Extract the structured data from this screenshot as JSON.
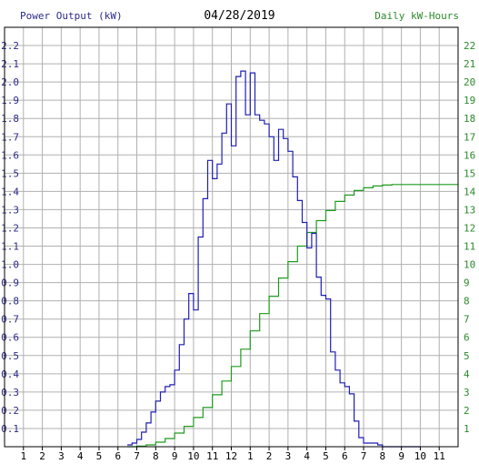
{
  "header": {
    "left_title": "Power Output (kW)",
    "date": "04/28/2019",
    "right_title": "Daily kW-Hours"
  },
  "colors": {
    "power_line": "#1f1fb4",
    "energy_line": "#1f9a1f",
    "grid": "#b0b0b0",
    "frame": "#000000",
    "left_axis_text": "#2b2b8c",
    "right_axis_text": "#2c8a2c"
  },
  "chart_data": {
    "type": "line",
    "title": "04/28/2019",
    "xlabel": "",
    "ylabel": "Power Output (kW)",
    "y2label": "Daily kW-Hours",
    "x_ticks": [
      "1",
      "2",
      "3",
      "4",
      "5",
      "6",
      "7",
      "8",
      "9",
      "10",
      "11",
      "12",
      "1",
      "2",
      "3",
      "4",
      "5",
      "6",
      "7",
      "8",
      "9",
      "10",
      "11"
    ],
    "ylim": [
      0,
      2.3
    ],
    "y_ticks": [
      "0.1",
      "0.2",
      "0.3",
      "0.4",
      "0.5",
      "0.6",
      "0.7",
      "0.8",
      "0.9",
      "1.0",
      "1.1",
      "1.2",
      "1.3",
      "1.4",
      "1.5",
      "1.6",
      "1.7",
      "1.8",
      "1.9",
      "2.0",
      "2.1",
      "2.2"
    ],
    "y2lim": [
      0,
      23
    ],
    "y2_ticks": [
      "1",
      "2",
      "3",
      "4",
      "5",
      "6",
      "7",
      "8",
      "9",
      "10",
      "11",
      "12",
      "13",
      "14",
      "15",
      "16",
      "17",
      "18",
      "19",
      "20",
      "21",
      "22"
    ],
    "grid": true,
    "series": [
      {
        "name": "Power Output (kW)",
        "axis": "left",
        "x_hours": [
          6.5,
          6.75,
          7.0,
          7.25,
          7.5,
          7.75,
          8.0,
          8.25,
          8.5,
          8.75,
          9.0,
          9.25,
          9.5,
          9.75,
          10.0,
          10.25,
          10.5,
          10.75,
          11.0,
          11.25,
          11.5,
          11.75,
          12.0,
          12.25,
          12.5,
          12.75,
          13.0,
          13.25,
          13.5,
          13.75,
          14.0,
          14.25,
          14.5,
          14.75,
          15.0,
          15.25,
          15.5,
          15.75,
          16.0,
          16.25,
          16.5,
          16.75,
          17.0,
          17.25,
          17.5,
          17.75,
          18.0,
          18.25,
          18.5,
          18.75,
          19.0,
          19.25,
          19.5,
          19.75,
          20.0,
          20.25,
          20.5,
          20.75,
          21.0,
          21.25,
          21.5,
          21.75
        ],
        "values": [
          0.01,
          0.02,
          0.04,
          0.08,
          0.13,
          0.19,
          0.25,
          0.3,
          0.33,
          0.34,
          0.42,
          0.56,
          0.7,
          0.84,
          0.75,
          1.15,
          1.36,
          1.57,
          1.47,
          1.55,
          1.72,
          1.88,
          1.65,
          2.03,
          2.06,
          1.82,
          2.05,
          1.82,
          1.79,
          1.77,
          1.7,
          1.57,
          1.74,
          1.69,
          1.62,
          1.48,
          1.35,
          1.23,
          1.09,
          1.17,
          0.93,
          0.83,
          0.81,
          0.52,
          0.42,
          0.35,
          0.33,
          0.29,
          0.14,
          0.05,
          0.02,
          0.02,
          0.02,
          0.01,
          0.0,
          0.0,
          0.0,
          0.0,
          0.0,
          0.0,
          0.0,
          0.0
        ]
      },
      {
        "name": "Daily kW-Hours",
        "axis": "right",
        "x_hours": [
          6.5,
          7.0,
          7.5,
          8.0,
          8.5,
          9.0,
          9.5,
          10.0,
          10.5,
          11.0,
          11.5,
          12.0,
          12.5,
          13.0,
          13.5,
          14.0,
          14.5,
          15.0,
          15.5,
          16.0,
          16.5,
          17.0,
          17.5,
          18.0,
          18.5,
          19.0,
          19.5,
          20.0,
          20.5,
          21.0,
          21.5,
          22.0,
          22.5,
          23.0
        ],
        "values": [
          0.0,
          0.03,
          0.1,
          0.25,
          0.45,
          0.75,
          1.12,
          1.6,
          2.15,
          2.85,
          3.6,
          4.4,
          5.35,
          6.35,
          7.3,
          8.25,
          9.25,
          10.15,
          11.0,
          11.75,
          12.4,
          12.95,
          13.45,
          13.8,
          14.05,
          14.2,
          14.3,
          14.35,
          14.38,
          14.38,
          14.38,
          14.38,
          14.38,
          14.38
        ]
      }
    ]
  }
}
